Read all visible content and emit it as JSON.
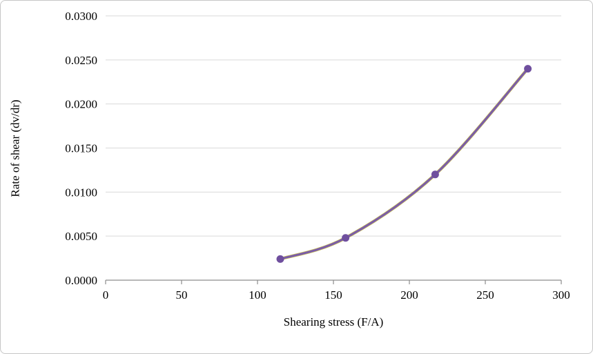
{
  "chart_data": {
    "type": "scatter",
    "title": "",
    "xlabel": "Shearing stress (F/A)",
    "ylabel": "Rate of shear (dv/dr)",
    "x": [
      115,
      158,
      217,
      278
    ],
    "y": [
      0.0024,
      0.0048,
      0.012,
      0.024
    ],
    "xlim": [
      0,
      300
    ],
    "ylim": [
      0,
      0.03
    ],
    "x_ticks": [
      0,
      50,
      100,
      150,
      200,
      250,
      300
    ],
    "x_tick_labels": [
      "0",
      "50",
      "100",
      "150",
      "200",
      "250",
      "300"
    ],
    "y_ticks": [
      0,
      0.005,
      0.01,
      0.015,
      0.02,
      0.025,
      0.03
    ],
    "y_tick_labels": [
      "0.0000",
      "0.0050",
      "0.0100",
      "0.0150",
      "0.0200",
      "0.0250",
      "0.0300"
    ],
    "grid": true,
    "legend": "none",
    "smooth": true,
    "colors": {
      "line": "#7a5ca8",
      "marker": "#6f4f9e",
      "line_halo": "#c3b95a",
      "grid": "#d9d9d9",
      "axis": "#8c8c8c",
      "tick_text": "#000000",
      "frame_border": "#c6c6c6",
      "background": "#ffffff"
    }
  }
}
